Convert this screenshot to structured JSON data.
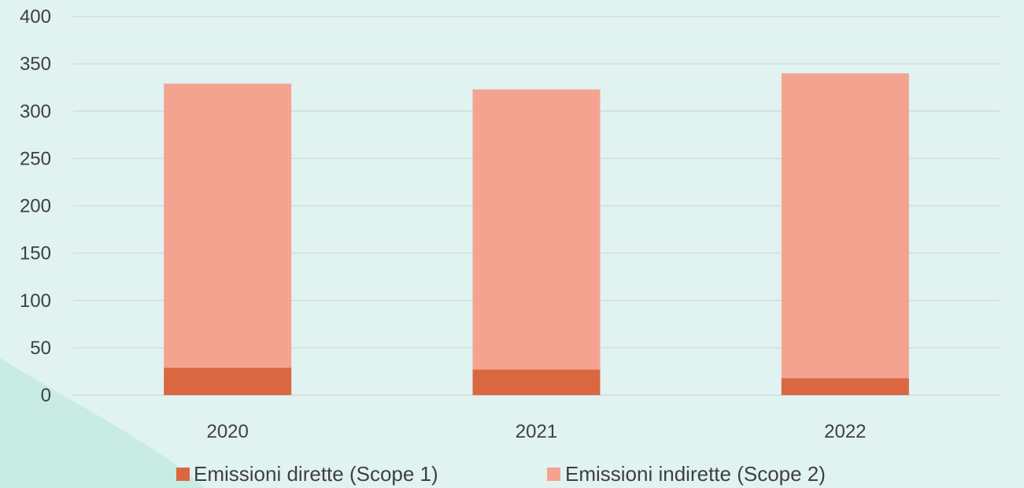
{
  "chart_data": {
    "type": "bar",
    "stacked": true,
    "categories": [
      "2020",
      "2021",
      "2022"
    ],
    "series": [
      {
        "name": "Emissioni dirette (Scope 1)",
        "values": [
          29,
          27,
          18
        ],
        "color": "#d96841"
      },
      {
        "name": "Emissioni indirette (Scope 2)",
        "values": [
          300,
          296,
          322
        ],
        "color": "#f5a391"
      }
    ],
    "title": "",
    "xlabel": "",
    "ylabel": "",
    "ylim": [
      0,
      400
    ],
    "yticks": [
      0,
      50,
      100,
      150,
      200,
      250,
      300,
      350,
      400
    ],
    "grid": true,
    "legend_position": "bottom",
    "colors": {
      "background": "#e0f3f1",
      "decoration": "#c8ebe3",
      "gridline": "#cfdedd",
      "text": "#404040"
    }
  }
}
